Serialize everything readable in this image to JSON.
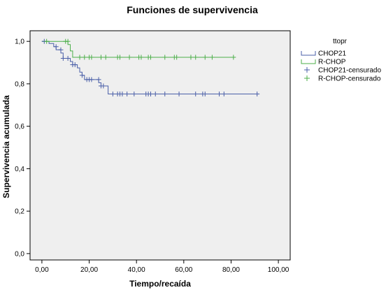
{
  "chart_data": {
    "type": "line",
    "title": "Funciones de supervivencia",
    "xlabel": "Tiempo/recaída",
    "ylabel": "Supervivencia acumulada",
    "xlim": [
      -5,
      105
    ],
    "ylim": [
      -0.03,
      1.05
    ],
    "x_ticks": [
      0,
      20,
      40,
      60,
      80,
      100
    ],
    "x_tick_labels": [
      "0,00",
      "20,00",
      "40,00",
      "60,00",
      "80,00",
      "100,00"
    ],
    "y_ticks": [
      0,
      0.2,
      0.4,
      0.6,
      0.8,
      1.0
    ],
    "y_tick_labels": [
      "0,0",
      "0,2",
      "0,4",
      "0,6",
      "0,8",
      "1,0"
    ],
    "grid": false,
    "legend_title": "ttopr",
    "legend_position": "right",
    "series": [
      {
        "name": "CHOP21",
        "color": "#4a5fa8",
        "steps": [
          [
            0,
            1.0
          ],
          [
            3,
            1.0
          ],
          [
            3,
            0.99
          ],
          [
            5,
            0.99
          ],
          [
            5,
            0.975
          ],
          [
            6,
            0.975
          ],
          [
            6,
            0.96
          ],
          [
            8,
            0.96
          ],
          [
            8,
            0.945
          ],
          [
            9,
            0.945
          ],
          [
            9,
            0.92
          ],
          [
            12,
            0.92
          ],
          [
            12,
            0.905
          ],
          [
            13,
            0.905
          ],
          [
            13,
            0.89
          ],
          [
            15,
            0.89
          ],
          [
            15,
            0.875
          ],
          [
            16,
            0.875
          ],
          [
            16,
            0.855
          ],
          [
            17,
            0.855
          ],
          [
            17,
            0.84
          ],
          [
            18,
            0.84
          ],
          [
            18,
            0.82
          ],
          [
            24,
            0.82
          ],
          [
            24,
            0.805
          ],
          [
            25,
            0.805
          ],
          [
            25,
            0.79
          ],
          [
            28,
            0.79
          ],
          [
            28,
            0.752
          ],
          [
            91,
            0.752
          ]
        ]
      },
      {
        "name": "R-CHOP",
        "color": "#4caf4a",
        "steps": [
          [
            0,
            1.0
          ],
          [
            11,
            1.0
          ],
          [
            11,
            0.985
          ],
          [
            12,
            0.985
          ],
          [
            12,
            0.955
          ],
          [
            13,
            0.955
          ],
          [
            13,
            0.925
          ],
          [
            81,
            0.925
          ]
        ]
      },
      {
        "name": "CHOP21-censurado",
        "color": "#4a5fa8",
        "marker": "+",
        "points": [
          [
            1,
            1.0
          ],
          [
            6,
            0.975
          ],
          [
            8,
            0.96
          ],
          [
            9,
            0.92
          ],
          [
            11,
            0.92
          ],
          [
            13,
            0.89
          ],
          [
            14,
            0.89
          ],
          [
            17,
            0.84
          ],
          [
            19,
            0.82
          ],
          [
            20,
            0.82
          ],
          [
            21,
            0.82
          ],
          [
            24,
            0.82
          ],
          [
            25,
            0.79
          ],
          [
            26,
            0.79
          ],
          [
            30,
            0.752
          ],
          [
            32,
            0.752
          ],
          [
            33,
            0.752
          ],
          [
            34,
            0.752
          ],
          [
            36,
            0.752
          ],
          [
            39,
            0.752
          ],
          [
            44,
            0.752
          ],
          [
            45,
            0.752
          ],
          [
            46,
            0.752
          ],
          [
            48,
            0.752
          ],
          [
            52,
            0.752
          ],
          [
            58,
            0.752
          ],
          [
            65,
            0.752
          ],
          [
            68,
            0.752
          ],
          [
            69,
            0.752
          ],
          [
            75,
            0.752
          ],
          [
            77,
            0.752
          ],
          [
            91,
            0.752
          ]
        ]
      },
      {
        "name": "R-CHOP-censurado",
        "color": "#4caf4a",
        "marker": "+",
        "points": [
          [
            2,
            1.0
          ],
          [
            10,
            1.0
          ],
          [
            11,
            1.0
          ],
          [
            16,
            0.925
          ],
          [
            18,
            0.925
          ],
          [
            20,
            0.925
          ],
          [
            21,
            0.925
          ],
          [
            25,
            0.925
          ],
          [
            27,
            0.925
          ],
          [
            32,
            0.925
          ],
          [
            33,
            0.925
          ],
          [
            37,
            0.925
          ],
          [
            41,
            0.925
          ],
          [
            42,
            0.925
          ],
          [
            45,
            0.925
          ],
          [
            46,
            0.925
          ],
          [
            52,
            0.925
          ],
          [
            56,
            0.925
          ],
          [
            57,
            0.925
          ],
          [
            63,
            0.925
          ],
          [
            65,
            0.925
          ],
          [
            69,
            0.925
          ],
          [
            72,
            0.925
          ],
          [
            81,
            0.925
          ]
        ]
      }
    ]
  }
}
